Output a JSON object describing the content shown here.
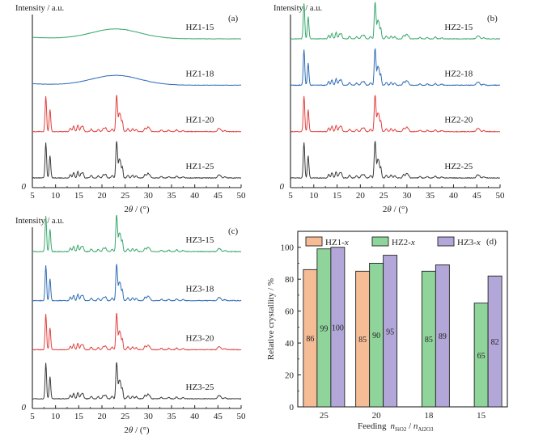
{
  "colors": {
    "HZ1": "#f5bc96",
    "HZ2": "#8fd49b",
    "HZ3": "#b3a7d9",
    "line15": "#3aa76d",
    "line18": "#2f6db5",
    "line20": "#e0413f",
    "line25": "#3a3a3a"
  },
  "chart_data": [
    {
      "type": "line",
      "panel_label": "(a)",
      "ylabel": "Intensity / a.u.",
      "xlabel_prefix": "2",
      "xlabel_theta": "θ",
      "xlabel_suffix": " / (°)",
      "xlim": [
        5,
        50
      ],
      "xticks": [
        5,
        10,
        15,
        20,
        25,
        30,
        35,
        40,
        45,
        50
      ],
      "y_origin_label": "0",
      "series": [
        {
          "name": "HZ1-15",
          "color_key": "line15",
          "kind": "amorphous"
        },
        {
          "name": "HZ1-18",
          "color_key": "line18",
          "kind": "amorphous"
        },
        {
          "name": "HZ1-20",
          "color_key": "line20",
          "kind": "crystalline"
        },
        {
          "name": "HZ1-25",
          "color_key": "line25",
          "kind": "crystalline"
        }
      ]
    },
    {
      "type": "line",
      "panel_label": "(b)",
      "ylabel": "Intensity / a.u.",
      "xlabel_prefix": "2",
      "xlabel_theta": "θ",
      "xlabel_suffix": " / (°)",
      "xlim": [
        5,
        50
      ],
      "xticks": [
        5,
        10,
        15,
        20,
        25,
        30,
        35,
        40,
        45,
        50
      ],
      "y_origin_label": "0",
      "series": [
        {
          "name": "HZ2-15",
          "color_key": "line15",
          "kind": "crystalline"
        },
        {
          "name": "HZ2-18",
          "color_key": "line18",
          "kind": "crystalline"
        },
        {
          "name": "HZ2-20",
          "color_key": "line20",
          "kind": "crystalline"
        },
        {
          "name": "HZ2-25",
          "color_key": "line25",
          "kind": "crystalline"
        }
      ]
    },
    {
      "type": "line",
      "panel_label": "(c)",
      "ylabel": "Intensity / a.u.",
      "xlabel_prefix": "2",
      "xlabel_theta": "θ",
      "xlabel_suffix": " / (°)",
      "xlim": [
        5,
        50
      ],
      "xticks": [
        5,
        10,
        15,
        20,
        25,
        30,
        35,
        40,
        45,
        50
      ],
      "y_origin_label": "0",
      "series": [
        {
          "name": "HZ3-15",
          "color_key": "line15",
          "kind": "crystalline"
        },
        {
          "name": "HZ3-18",
          "color_key": "line18",
          "kind": "crystalline"
        },
        {
          "name": "HZ3-20",
          "color_key": "line20",
          "kind": "crystalline"
        },
        {
          "name": "HZ3-25",
          "color_key": "line25",
          "kind": "crystalline"
        }
      ]
    },
    {
      "type": "bar",
      "panel_label": "(d)",
      "ylabel": "Relative crystallity / %",
      "xlabel_feeding": "Feeding",
      "xlabel_n1": "n",
      "xlabel_sub1": "SiO2",
      "xlabel_slash": " / ",
      "xlabel_n2": "n",
      "xlabel_sub2": "Al2O3",
      "categories": [
        "25",
        "20",
        "18",
        "15"
      ],
      "ylim": [
        0,
        110
      ],
      "yticks": [
        0,
        20,
        40,
        60,
        80,
        100
      ],
      "legend_position": "top",
      "series": [
        {
          "name_prefix": "HZ1-",
          "name_suffix": "x",
          "color_key": "HZ1",
          "values": [
            86,
            85,
            null,
            null
          ]
        },
        {
          "name_prefix": "HZ2-",
          "name_suffix": "x",
          "color_key": "HZ2",
          "values": [
            99,
            90,
            85,
            65
          ]
        },
        {
          "name_prefix": "HZ3-",
          "name_suffix": "x",
          "color_key": "HZ3",
          "values": [
            100,
            95,
            89,
            82
          ]
        }
      ]
    }
  ]
}
